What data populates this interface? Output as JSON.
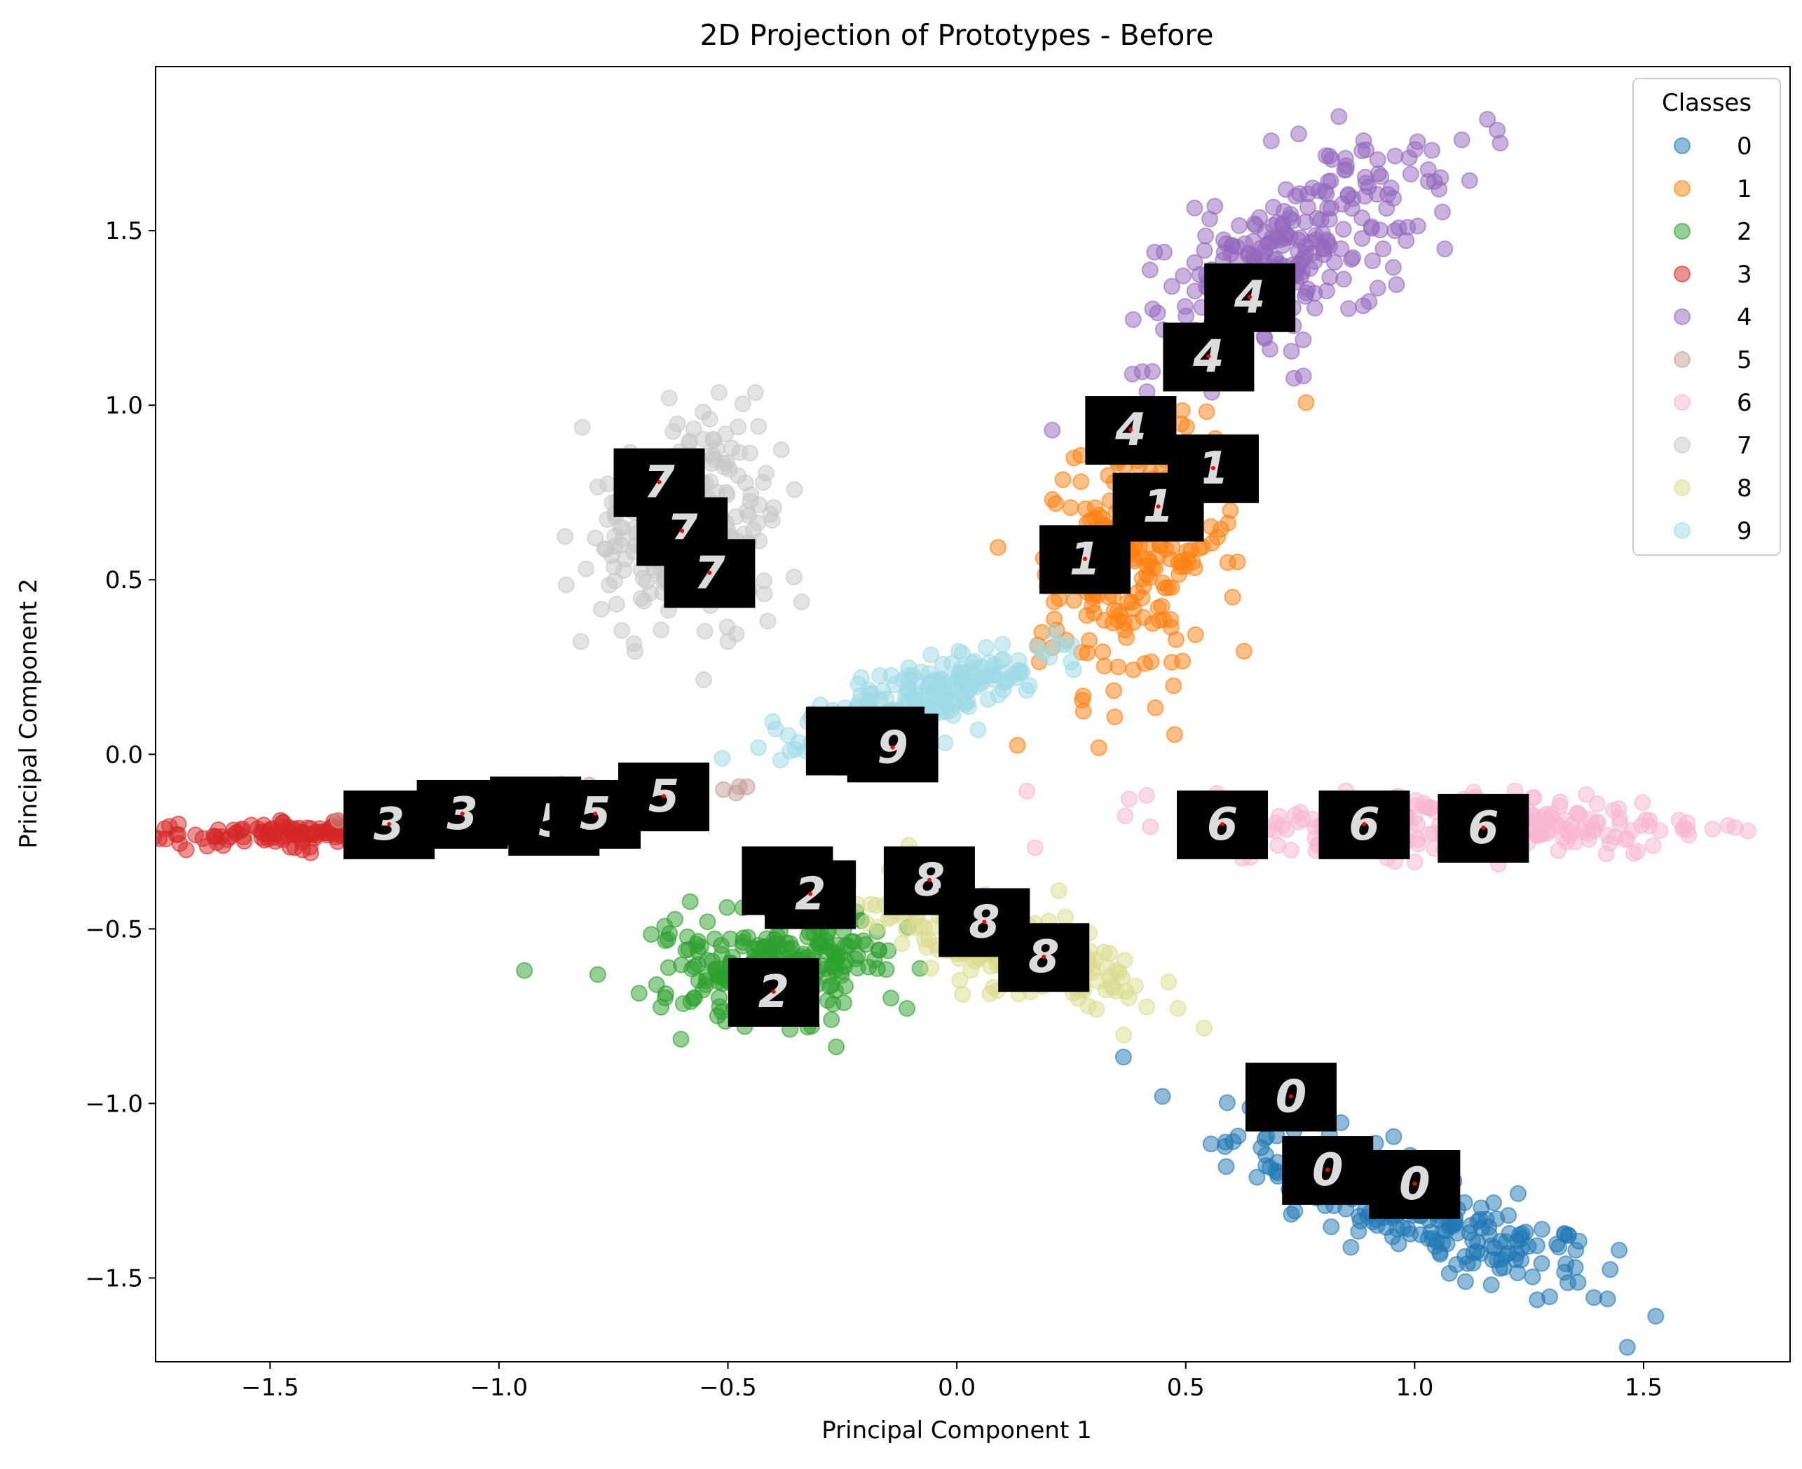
{
  "chart_data": {
    "type": "scatter",
    "title": "2D Projection of Prototypes - Before",
    "xlabel": "Principal Component 1",
    "ylabel": "Principal Component 2",
    "xlim": [
      -1.75,
      1.82
    ],
    "ylim": [
      -1.74,
      1.97
    ],
    "xticks": [
      "−1.5",
      "−1.0",
      "−0.5",
      "0.0",
      "0.5",
      "1.0",
      "1.5"
    ],
    "xtick_values": [
      -1.5,
      -1.0,
      -0.5,
      0.0,
      0.5,
      1.0,
      1.5
    ],
    "yticks": [
      "−1.5",
      "−1.0",
      "−0.5",
      "0.0",
      "0.5",
      "1.0",
      "1.5"
    ],
    "ytick_values": [
      -1.5,
      -1.0,
      -0.5,
      0.0,
      0.5,
      1.0,
      1.5
    ],
    "grid": false,
    "legend": {
      "title": "Classes",
      "placement": "top-right"
    },
    "series": [
      {
        "name": "0",
        "color": "#1f77b4",
        "center": [
          1.0,
          -1.3
        ],
        "spread": [
          0.22,
          0.14
        ]
      },
      {
        "name": "1",
        "color": "#ff7f0e",
        "center": [
          0.4,
          0.6
        ],
        "spread": [
          0.22,
          0.2
        ]
      },
      {
        "name": "2",
        "color": "#2ca02c",
        "center": [
          -0.4,
          -0.6
        ],
        "spread": [
          0.08,
          0.3
        ]
      },
      {
        "name": "3",
        "color": "#d62728",
        "center": [
          -1.3,
          -0.22
        ],
        "spread": [
          0.25,
          0.04
        ]
      },
      {
        "name": "4",
        "color": "#9467bd",
        "center": [
          0.75,
          1.45
        ],
        "spread": [
          0.2,
          0.2
        ]
      },
      {
        "name": "5",
        "color": "#c49c94",
        "center": [
          -0.9,
          -0.15
        ],
        "spread": [
          0.15,
          0.05
        ]
      },
      {
        "name": "6",
        "color": "#f7b6d2",
        "center": [
          1.1,
          -0.2
        ],
        "spread": [
          0.28,
          0.1
        ]
      },
      {
        "name": "7",
        "color": "#c7c7c7",
        "center": [
          -0.6,
          0.65
        ],
        "spread": [
          0.15,
          0.22
        ]
      },
      {
        "name": "8",
        "color": "#dbdb8d",
        "center": [
          0.1,
          -0.55
        ],
        "spread": [
          0.15,
          0.12
        ]
      },
      {
        "name": "9",
        "color": "#9edae5",
        "center": [
          -0.1,
          0.15
        ],
        "spread": [
          0.15,
          0.1
        ]
      }
    ],
    "prototypes": [
      {
        "digit": "0",
        "x": 0.73,
        "y": -0.98
      },
      {
        "digit": "0",
        "x": 0.81,
        "y": -1.19
      },
      {
        "digit": "0",
        "x": 1.0,
        "y": -1.23
      },
      {
        "digit": "1",
        "x": 0.56,
        "y": 0.82
      },
      {
        "digit": "1",
        "x": 0.44,
        "y": 0.71
      },
      {
        "digit": "1",
        "x": 0.28,
        "y": 0.56
      },
      {
        "digit": "2",
        "x": -0.37,
        "y": -0.36
      },
      {
        "digit": "2",
        "x": -0.32,
        "y": -0.4
      },
      {
        "digit": "2",
        "x": -0.4,
        "y": -0.68
      },
      {
        "digit": "3",
        "x": -1.24,
        "y": -0.2
      },
      {
        "digit": "3",
        "x": -1.08,
        "y": -0.17
      },
      {
        "digit": "3",
        "x": -0.92,
        "y": -0.16
      },
      {
        "digit": "4",
        "x": 0.64,
        "y": 1.31
      },
      {
        "digit": "4",
        "x": 0.55,
        "y": 1.14
      },
      {
        "digit": "4",
        "x": 0.38,
        "y": 0.93
      },
      {
        "digit": "5",
        "x": -0.88,
        "y": -0.19
      },
      {
        "digit": "5",
        "x": -0.79,
        "y": -0.17
      },
      {
        "digit": "5",
        "x": -0.64,
        "y": -0.12
      },
      {
        "digit": "6",
        "x": 0.58,
        "y": -0.2
      },
      {
        "digit": "6",
        "x": 0.89,
        "y": -0.2
      },
      {
        "digit": "6",
        "x": 1.15,
        "y": -0.21
      },
      {
        "digit": "7",
        "x": -0.65,
        "y": 0.78
      },
      {
        "digit": "7",
        "x": -0.6,
        "y": 0.64
      },
      {
        "digit": "7",
        "x": -0.54,
        "y": 0.52
      },
      {
        "digit": "8",
        "x": -0.06,
        "y": -0.36
      },
      {
        "digit": "8",
        "x": 0.06,
        "y": -0.48
      },
      {
        "digit": "8",
        "x": 0.19,
        "y": -0.58
      },
      {
        "digit": "9",
        "x": -0.23,
        "y": 0.04
      },
      {
        "digit": "9",
        "x": -0.17,
        "y": 0.04
      },
      {
        "digit": "9",
        "x": -0.14,
        "y": 0.02
      }
    ]
  }
}
